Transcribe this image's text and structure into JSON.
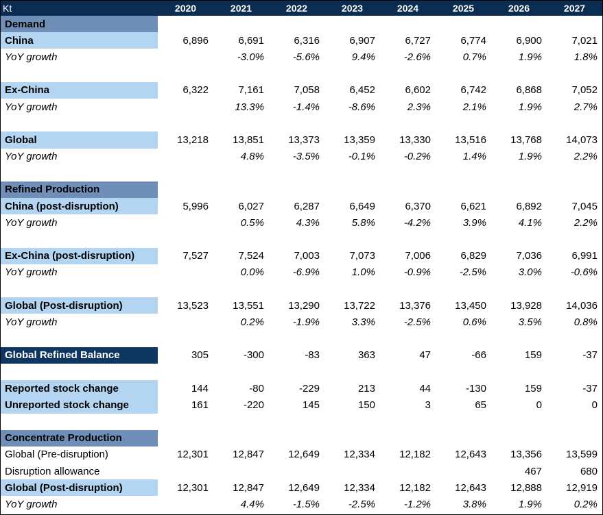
{
  "header": {
    "unit": "Kt",
    "years": [
      "2020",
      "2021",
      "2022",
      "2023",
      "2024",
      "2025",
      "2026",
      "2027"
    ]
  },
  "rows": [
    {
      "label": "Demand",
      "style": "section",
      "values": []
    },
    {
      "label": "China",
      "style": "light",
      "values": [
        "6,896",
        "6,691",
        "6,316",
        "6,907",
        "6,727",
        "6,774",
        "6,900",
        "7,021"
      ]
    },
    {
      "label": "YoY growth",
      "style": "yoy",
      "values": [
        "",
        "-3.0%",
        "-5.6%",
        "9.4%",
        "-2.6%",
        "0.7%",
        "1.9%",
        "1.8%"
      ]
    },
    {
      "label": "",
      "style": "spacer",
      "values": []
    },
    {
      "label": "Ex-China",
      "style": "light",
      "values": [
        "6,322",
        "7,161",
        "7,058",
        "6,452",
        "6,602",
        "6,742",
        "6,868",
        "7,052"
      ]
    },
    {
      "label": "YoY growth",
      "style": "yoy",
      "values": [
        "",
        "13.3%",
        "-1.4%",
        "-8.6%",
        "2.3%",
        "2.1%",
        "1.9%",
        "2.7%"
      ]
    },
    {
      "label": "",
      "style": "spacer",
      "values": []
    },
    {
      "label": "Global",
      "style": "light",
      "values": [
        "13,218",
        "13,851",
        "13,373",
        "13,359",
        "13,330",
        "13,516",
        "13,768",
        "14,073"
      ]
    },
    {
      "label": "YoY growth",
      "style": "yoy",
      "values": [
        "",
        "4.8%",
        "-3.5%",
        "-0.1%",
        "-0.2%",
        "1.4%",
        "1.9%",
        "2.2%"
      ]
    },
    {
      "label": "",
      "style": "spacer",
      "values": []
    },
    {
      "label": "Refined Production",
      "style": "section",
      "values": []
    },
    {
      "label": "China (post-disruption)",
      "style": "light",
      "values": [
        "5,996",
        "6,027",
        "6,287",
        "6,649",
        "6,370",
        "6,621",
        "6,892",
        "7,045"
      ]
    },
    {
      "label": "YoY growth",
      "style": "yoy",
      "values": [
        "",
        "0.5%",
        "4.3%",
        "5.8%",
        "-4.2%",
        "3.9%",
        "4.1%",
        "2.2%"
      ]
    },
    {
      "label": "",
      "style": "spacer",
      "values": []
    },
    {
      "label": "Ex-China (post-disruption)",
      "style": "light",
      "values": [
        "7,527",
        "7,524",
        "7,003",
        "7,073",
        "7,006",
        "6,829",
        "7,036",
        "6,991"
      ]
    },
    {
      "label": "YoY growth",
      "style": "yoy",
      "values": [
        "",
        "0.0%",
        "-6.9%",
        "1.0%",
        "-0.9%",
        "-2.5%",
        "3.0%",
        "-0.6%"
      ]
    },
    {
      "label": "",
      "style": "spacer",
      "values": []
    },
    {
      "label": "Global (Post-disruption)",
      "style": "light",
      "values": [
        "13,523",
        "13,551",
        "13,290",
        "13,722",
        "13,376",
        "13,450",
        "13,928",
        "14,036"
      ]
    },
    {
      "label": "YoY growth",
      "style": "yoy",
      "values": [
        "",
        "0.2%",
        "-1.9%",
        "3.3%",
        "-2.5%",
        "0.6%",
        "3.5%",
        "0.8%"
      ]
    },
    {
      "label": "",
      "style": "spacer",
      "values": []
    },
    {
      "label": "Global Refined Balance",
      "style": "dark",
      "values": [
        "305",
        "-300",
        "-83",
        "363",
        "47",
        "-66",
        "159",
        "-37"
      ]
    },
    {
      "label": "",
      "style": "spacer",
      "values": []
    },
    {
      "label": "Reported stock change",
      "style": "light",
      "values": [
        "144",
        "-80",
        "-229",
        "213",
        "44",
        "-130",
        "159",
        "-37"
      ]
    },
    {
      "label": "Unreported stock change",
      "style": "light",
      "values": [
        "161",
        "-220",
        "145",
        "150",
        "3",
        "65",
        "0",
        "0"
      ]
    },
    {
      "label": "",
      "style": "spacer",
      "values": []
    },
    {
      "label": "Concentrate Production",
      "style": "section",
      "values": []
    },
    {
      "label": "Global (Pre-disruption)",
      "style": "plain",
      "values": [
        "12,301",
        "12,847",
        "12,649",
        "12,334",
        "12,182",
        "12,643",
        "13,356",
        "13,599"
      ]
    },
    {
      "label": "Disruption allowance",
      "style": "plain",
      "values": [
        "",
        "",
        "",
        "",
        "",
        "",
        "467",
        "680"
      ]
    },
    {
      "label": "Global (Post-disruption)",
      "style": "light",
      "values": [
        "12,301",
        "12,847",
        "12,649",
        "12,334",
        "12,182",
        "12,643",
        "12,888",
        "12,919"
      ]
    },
    {
      "label": "YoY growth",
      "style": "yoy",
      "values": [
        "",
        "4.4%",
        "-1.5%",
        "-2.5%",
        "-1.2%",
        "3.8%",
        "1.9%",
        "0.2%"
      ]
    }
  ]
}
